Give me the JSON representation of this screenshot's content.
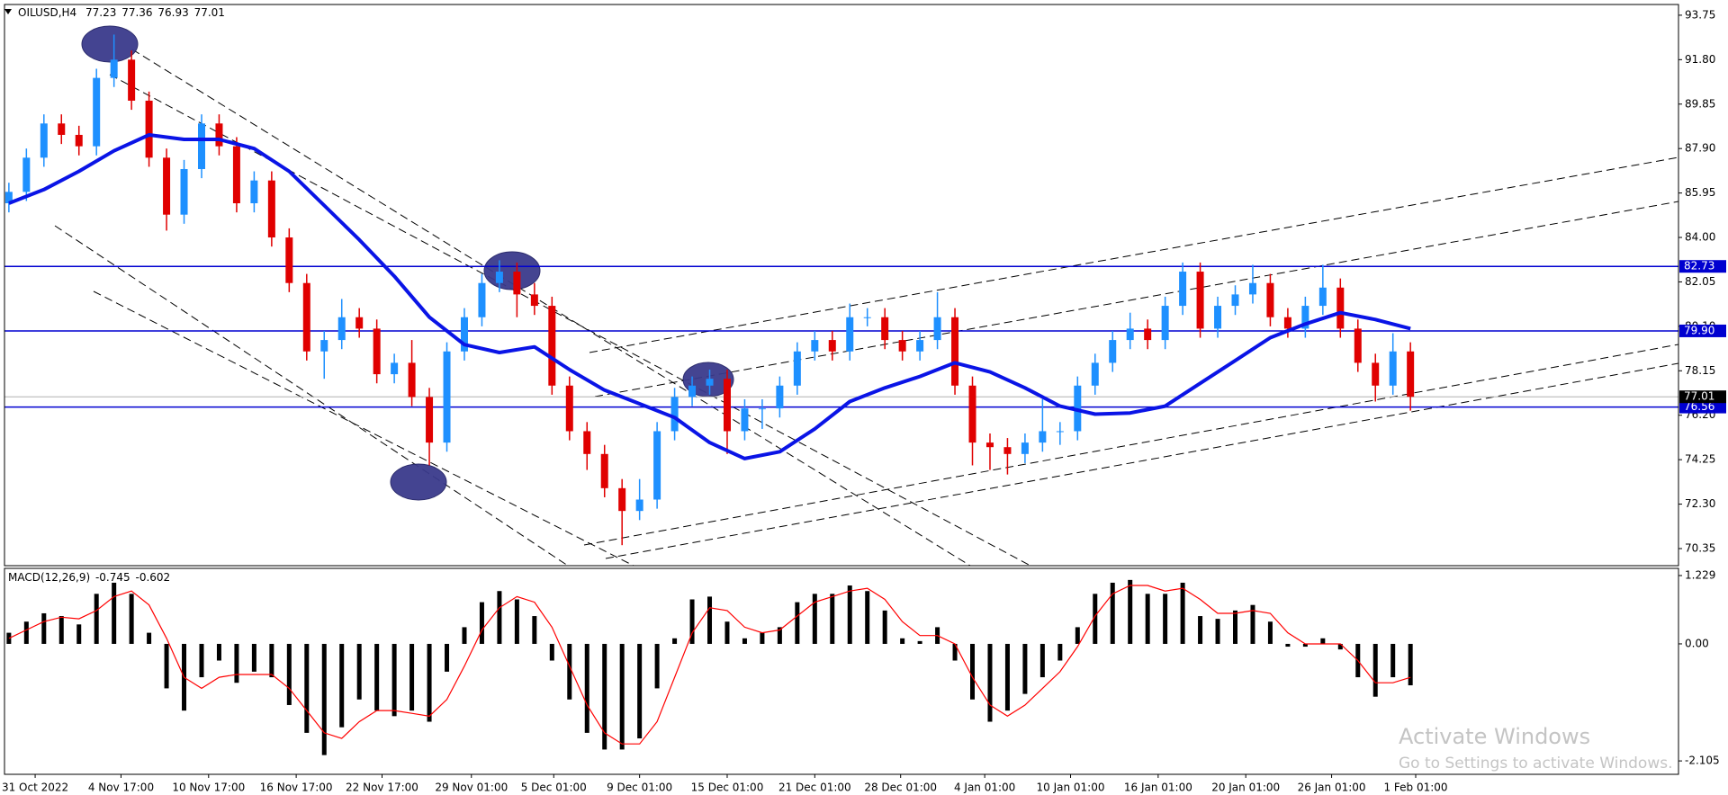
{
  "chart_data": {
    "type": "candlestick",
    "symbol": "OILUSD,H4",
    "last_bar": {
      "open": 77.23,
      "high": 77.36,
      "low": 76.93,
      "close": 77.01
    },
    "up_color": "#1e90ff",
    "down_color": "#e00000",
    "open": [
      85.5,
      86.0,
      87.5,
      89.0,
      88.5,
      88.0,
      91.0,
      91.8,
      90.0,
      87.5,
      85.0,
      87.0,
      89.0,
      88.0,
      85.5,
      86.5,
      84.0,
      82.0,
      79.0,
      79.5,
      80.5,
      80.0,
      78.0,
      78.5,
      77.0,
      75.0,
      79.0,
      80.5,
      82.0,
      82.5,
      81.5,
      81.0,
      77.5,
      75.5,
      74.5,
      73.0,
      72.0,
      72.5,
      75.5,
      77.0,
      77.5,
      77.8,
      75.5,
      76.5,
      76.5,
      77.5,
      79.0,
      79.5,
      79.0,
      80.5,
      80.5,
      79.5,
      79.0,
      79.5,
      80.5,
      77.5,
      75.0,
      74.8,
      74.5,
      75.0,
      75.5,
      75.5,
      77.5,
      78.5,
      79.5,
      80.0,
      79.5,
      81.0,
      82.5,
      80.0,
      81.0,
      81.5,
      82.0,
      80.5,
      80.0,
      81.0,
      81.8,
      80.0,
      78.5,
      77.5,
      79.0
    ],
    "high": [
      86.4,
      87.9,
      89.4,
      89.4,
      88.9,
      91.4,
      92.9,
      92.2,
      90.4,
      87.9,
      87.4,
      89.4,
      89.4,
      88.4,
      86.9,
      86.9,
      84.4,
      82.4,
      79.9,
      81.3,
      80.9,
      80.4,
      78.9,
      79.5,
      77.4,
      79.4,
      80.9,
      82.4,
      83.0,
      82.9,
      82.0,
      81.4,
      77.9,
      75.9,
      74.9,
      73.4,
      73.4,
      75.9,
      77.4,
      77.9,
      78.2,
      78.2,
      76.9,
      76.9,
      77.9,
      79.4,
      79.9,
      79.9,
      81.1,
      80.9,
      80.9,
      79.9,
      79.9,
      81.6,
      80.9,
      77.9,
      75.4,
      75.2,
      75.4,
      76.9,
      75.9,
      77.9,
      78.9,
      79.9,
      80.7,
      80.4,
      81.4,
      82.9,
      82.9,
      81.4,
      81.9,
      82.8,
      82.4,
      80.9,
      81.4,
      82.8,
      82.2,
      80.4,
      78.9,
      79.8,
      79.4
    ],
    "low": [
      85.1,
      85.6,
      87.1,
      88.1,
      87.6,
      87.6,
      90.6,
      89.6,
      87.1,
      84.3,
      84.6,
      86.6,
      87.6,
      85.1,
      85.1,
      83.6,
      81.6,
      78.6,
      77.8,
      79.1,
      79.6,
      77.6,
      77.6,
      76.6,
      74.0,
      74.6,
      78.6,
      80.1,
      81.6,
      80.5,
      80.6,
      77.1,
      75.1,
      73.8,
      72.6,
      70.5,
      71.6,
      72.1,
      75.1,
      76.6,
      77.1,
      74.5,
      75.1,
      75.6,
      76.1,
      77.1,
      78.6,
      78.6,
      78.6,
      80.1,
      79.1,
      78.6,
      78.6,
      79.1,
      77.1,
      74.0,
      73.8,
      73.6,
      74.1,
      74.6,
      74.9,
      75.1,
      77.1,
      78.1,
      79.1,
      79.1,
      79.1,
      80.6,
      79.6,
      79.6,
      80.6,
      81.1,
      80.1,
      79.6,
      79.6,
      80.6,
      79.6,
      78.1,
      76.8,
      77.1,
      76.4
    ],
    "close": [
      86.0,
      87.5,
      89.0,
      88.5,
      88.0,
      91.0,
      91.8,
      90.0,
      87.5,
      85.0,
      87.0,
      89.0,
      88.0,
      85.5,
      86.5,
      84.0,
      82.0,
      79.0,
      79.5,
      80.5,
      80.0,
      78.0,
      78.5,
      77.0,
      75.0,
      79.0,
      80.5,
      82.0,
      82.5,
      81.5,
      81.0,
      77.5,
      75.5,
      74.5,
      73.0,
      72.0,
      72.5,
      75.5,
      77.0,
      77.5,
      77.8,
      75.5,
      76.5,
      76.5,
      77.5,
      79.0,
      79.5,
      79.0,
      80.5,
      80.5,
      79.5,
      79.0,
      79.5,
      80.5,
      77.5,
      75.0,
      74.8,
      74.5,
      75.0,
      75.5,
      75.5,
      77.5,
      78.5,
      79.5,
      80.0,
      79.5,
      81.0,
      82.5,
      80.0,
      81.0,
      81.5,
      82.0,
      80.5,
      80.0,
      81.0,
      81.8,
      80.0,
      78.5,
      77.5,
      79.0,
      77.01
    ],
    "xlim": [
      -0.25,
      95.3
    ],
    "xticks": [
      {
        "value": 1.5,
        "label": "31 Oct 2022"
      },
      {
        "value": 6.4,
        "label": "4 Nov 17:00"
      },
      {
        "value": 11.4,
        "label": "10 Nov 17:00"
      },
      {
        "value": 16.4,
        "label": "16 Nov 17:00"
      },
      {
        "value": 21.3,
        "label": "22 Nov 17:00"
      },
      {
        "value": 26.4,
        "label": "29 Nov 01:00"
      },
      {
        "value": 31.1,
        "label": "5 Dec 01:00"
      },
      {
        "value": 36.0,
        "label": "9 Dec 01:00"
      },
      {
        "value": 41.0,
        "label": "15 Dec 01:00"
      },
      {
        "value": 46.0,
        "label": "21 Dec 01:00"
      },
      {
        "value": 50.9,
        "label": "28 Dec 01:00"
      },
      {
        "value": 55.7,
        "label": "4 Jan 01:00"
      },
      {
        "value": 60.6,
        "label": "10 Jan 01:00"
      },
      {
        "value": 65.6,
        "label": "16 Jan 01:00"
      },
      {
        "value": 70.6,
        "label": "20 Jan 01:00"
      },
      {
        "value": 75.5,
        "label": "26 Jan 01:00"
      },
      {
        "value": 80.3,
        "label": "1 Feb 01:00"
      }
    ],
    "ylim": [
      69.6,
      94.22
    ],
    "yticks": [
      93.75,
      {
        "value": 91.8,
        "label": "91.80"
      },
      89.85,
      {
        "value": 87.9,
        "label": "87.90"
      },
      85.95,
      {
        "value": 84,
        "label": "84.00"
      },
      82.05,
      {
        "value": 80.1,
        "label": "80.10"
      },
      78.15,
      {
        "value": 76.2,
        "label": "76.20"
      },
      74.25,
      {
        "value": 72.3,
        "label": "72.30"
      },
      70.35
    ],
    "moving_average": {
      "color": "#0a14e6",
      "x": [
        0,
        2,
        4,
        6,
        8,
        10,
        12,
        14,
        16,
        18,
        20,
        22,
        24,
        26,
        28,
        30,
        32,
        34,
        36,
        38,
        40,
        42,
        44,
        46,
        48,
        50,
        52,
        54,
        56,
        58,
        60,
        62,
        64,
        66,
        68,
        70,
        72,
        74,
        76,
        78,
        80
      ],
      "values": [
        85.5,
        86.1,
        86.9,
        87.8,
        88.5,
        88.3,
        88.3,
        87.9,
        86.9,
        85.4,
        83.9,
        82.3,
        80.5,
        79.3,
        78.95,
        79.2,
        78.2,
        77.3,
        76.7,
        76.1,
        75.0,
        74.3,
        74.6,
        75.6,
        76.8,
        77.4,
        77.9,
        78.5,
        78.1,
        77.4,
        76.6,
        76.25,
        76.3,
        76.6,
        77.6,
        78.6,
        79.6,
        80.2,
        80.7,
        80.4,
        80.0
      ]
    },
    "levels": {
      "color": "#0000d0",
      "values": [
        82.73,
        {
          "value": 79.9,
          "label": "79.90"
        },
        76.56
      ]
    },
    "macd": {
      "type": "bar",
      "label": "MACD(12,26,9)",
      "ylim": [
        -2.346,
        1.358
      ],
      "yticks": [
        1.229,
        {
          "value": 0,
          "label": "0.00"
        },
        -2.105
      ],
      "histogram": {
        "color": "#000000",
        "values": [
          0.2,
          0.4,
          0.55,
          0.5,
          0.35,
          0.9,
          1.1,
          0.9,
          0.2,
          -0.8,
          -1.2,
          -0.6,
          -0.3,
          -0.7,
          -0.5,
          -0.6,
          -1.1,
          -1.6,
          -2.0,
          -1.5,
          -1.0,
          -1.2,
          -1.3,
          -1.2,
          -1.4,
          -0.5,
          0.3,
          0.75,
          0.95,
          0.8,
          0.5,
          -0.3,
          -1.0,
          -1.6,
          -1.9,
          -1.9,
          -1.7,
          -0.8,
          0.1,
          0.8,
          0.85,
          0.4,
          0.1,
          0.2,
          0.3,
          0.75,
          0.9,
          0.9,
          1.05,
          0.95,
          0.6,
          0.1,
          0.05,
          0.3,
          -0.3,
          -1.0,
          -1.4,
          -1.2,
          -0.9,
          -0.6,
          -0.3,
          0.3,
          0.9,
          1.1,
          1.15,
          0.9,
          0.9,
          1.1,
          0.5,
          0.45,
          0.6,
          0.7,
          0.4,
          -0.05,
          -0.05,
          0.1,
          -0.1,
          -0.6,
          -0.95,
          -0.6,
          -0.745
        ]
      },
      "signal": {
        "color": "#ff0000",
        "values": [
          0.1,
          0.25,
          0.4,
          0.48,
          0.45,
          0.6,
          0.85,
          0.95,
          0.7,
          0.1,
          -0.6,
          -0.8,
          -0.6,
          -0.55,
          -0.55,
          -0.55,
          -0.8,
          -1.2,
          -1.6,
          -1.7,
          -1.4,
          -1.2,
          -1.2,
          -1.25,
          -1.3,
          -1.0,
          -0.4,
          0.25,
          0.65,
          0.85,
          0.75,
          0.3,
          -0.4,
          -1.1,
          -1.6,
          -1.8,
          -1.8,
          -1.4,
          -0.6,
          0.2,
          0.65,
          0.6,
          0.3,
          0.2,
          0.25,
          0.5,
          0.75,
          0.85,
          0.95,
          1.0,
          0.8,
          0.4,
          0.15,
          0.15,
          0.0,
          -0.6,
          -1.1,
          -1.3,
          -1.1,
          -0.8,
          -0.5,
          -0.05,
          0.5,
          0.9,
          1.05,
          1.05,
          0.95,
          1.0,
          0.8,
          0.55,
          0.55,
          0.6,
          0.55,
          0.2,
          0.0,
          0.0,
          0.0,
          -0.3,
          -0.7,
          -0.7,
          -0.602
        ]
      }
    },
    "watermark": {
      "title": "Activate Windows",
      "subtitle": "Go to Settings to activate Windows."
    }
  }
}
